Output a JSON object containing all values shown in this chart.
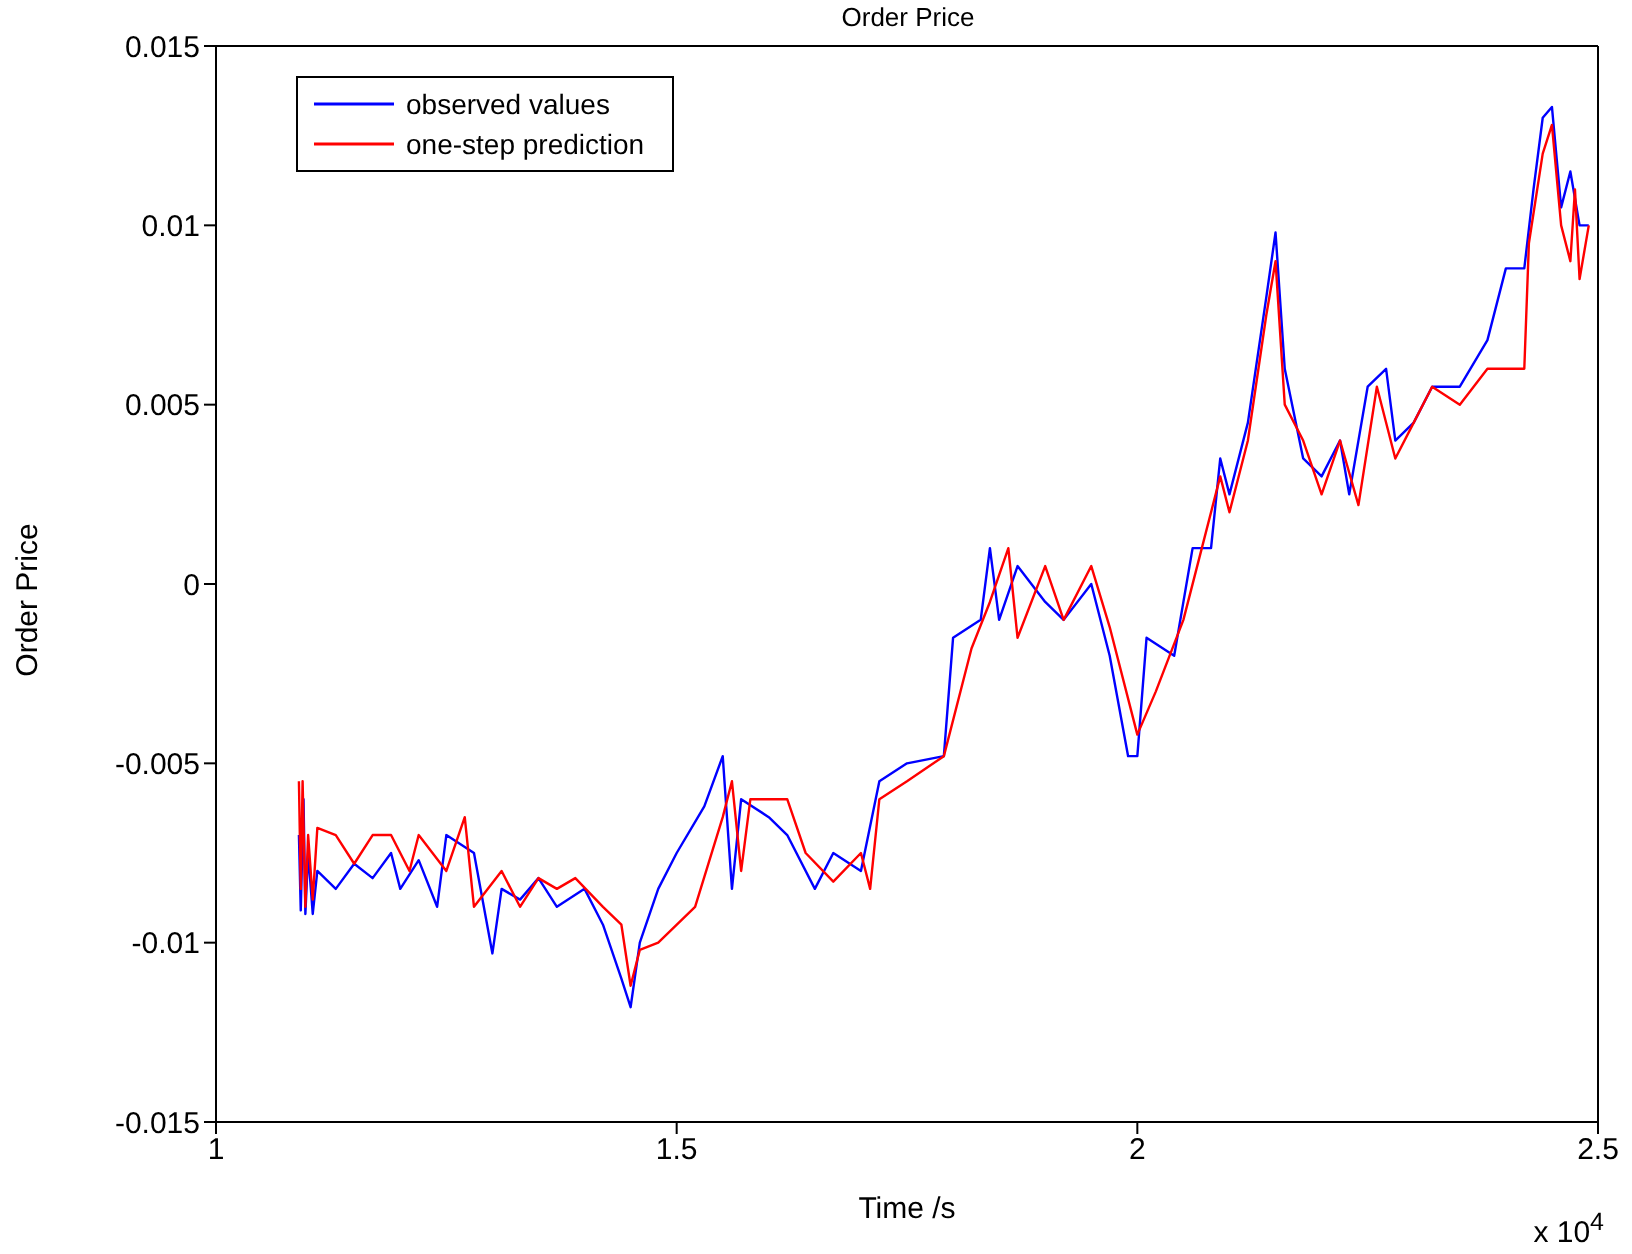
{
  "chart_data": {
    "type": "line",
    "title": "Order Price",
    "xlabel": "Time /s",
    "ylabel": "Order Price",
    "annotations": [
      "x 10$^{4}$"
    ],
    "xlim": [
      1,
      2.5
    ],
    "xticks": [
      1,
      1.5,
      2,
      2.5
    ],
    "ylim": [
      -0.015,
      0.015
    ],
    "yticks": [
      -0.015,
      -0.01,
      -0.005,
      0,
      0.005,
      0.01,
      0.015
    ],
    "grid": false,
    "legend": "top left",
    "marker": "none",
    "line_style": "solid",
    "series": [
      {
        "name": "observed values",
        "color": "#0000ff",
        "x": [
          1.09,
          1.092,
          1.095,
          1.097,
          1.1,
          1.105,
          1.11,
          1.13,
          1.15,
          1.17,
          1.19,
          1.2,
          1.22,
          1.24,
          1.25,
          1.28,
          1.3,
          1.31,
          1.33,
          1.35,
          1.37,
          1.4,
          1.42,
          1.44,
          1.45,
          1.46,
          1.48,
          1.5,
          1.53,
          1.55,
          1.56,
          1.57,
          1.6,
          1.62,
          1.65,
          1.67,
          1.7,
          1.72,
          1.75,
          1.79,
          1.8,
          1.83,
          1.84,
          1.85,
          1.87,
          1.9,
          1.92,
          1.95,
          1.97,
          1.99,
          2,
          2.01,
          2.04,
          2.06,
          2.08,
          2.09,
          2.1,
          2.12,
          2.14,
          2.15,
          2.16,
          2.18,
          2.2,
          2.22,
          2.23,
          2.25,
          2.27,
          2.28,
          2.3,
          2.32,
          2.35,
          2.38,
          2.4,
          2.42,
          2.43,
          2.44,
          2.45,
          2.46,
          2.47,
          2.48,
          2.49
        ],
        "values": [
          -0.007,
          -0.0091,
          -0.006,
          -0.0092,
          -0.0075,
          -0.0092,
          -0.008,
          -0.0085,
          -0.0078,
          -0.0082,
          -0.0075,
          -0.0085,
          -0.0077,
          -0.009,
          -0.007,
          -0.0075,
          -0.0103,
          -0.0085,
          -0.0088,
          -0.0082,
          -0.009,
          -0.0085,
          -0.0095,
          -0.011,
          -0.0118,
          -0.01,
          -0.0085,
          -0.0075,
          -0.0062,
          -0.0048,
          -0.0085,
          -0.006,
          -0.0065,
          -0.007,
          -0.0085,
          -0.0075,
          -0.008,
          -0.0055,
          -0.005,
          -0.0048,
          -0.0015,
          -0.001,
          0.001,
          -0.001,
          0.0005,
          -0.0005,
          -0.001,
          0,
          -0.002,
          -0.0048,
          -0.0048,
          -0.0015,
          -0.002,
          0.001,
          0.001,
          0.0035,
          0.0025,
          0.0045,
          0.008,
          0.0098,
          0.006,
          0.0035,
          0.003,
          0.004,
          0.0025,
          0.0055,
          0.006,
          0.004,
          0.0045,
          0.0055,
          0.0055,
          0.0068,
          0.0088,
          0.0088,
          0.011,
          0.013,
          0.0133,
          0.0105,
          0.0115,
          0.01,
          0.01
        ]
      },
      {
        "name": "one-step prediction",
        "color": "#ff0000",
        "x": [
          1.09,
          1.092,
          1.094,
          1.097,
          1.1,
          1.105,
          1.11,
          1.13,
          1.15,
          1.17,
          1.19,
          1.21,
          1.22,
          1.25,
          1.27,
          1.28,
          1.31,
          1.33,
          1.35,
          1.37,
          1.39,
          1.42,
          1.44,
          1.45,
          1.46,
          1.48,
          1.52,
          1.55,
          1.56,
          1.57,
          1.58,
          1.62,
          1.64,
          1.67,
          1.7,
          1.71,
          1.72,
          1.75,
          1.79,
          1.82,
          1.84,
          1.86,
          1.87,
          1.9,
          1.92,
          1.95,
          1.97,
          2,
          2.02,
          2.05,
          2.07,
          2.09,
          2.1,
          2.12,
          2.14,
          2.15,
          2.16,
          2.18,
          2.2,
          2.22,
          2.24,
          2.26,
          2.28,
          2.3,
          2.32,
          2.35,
          2.38,
          2.41,
          2.42,
          2.425,
          2.44,
          2.45,
          2.46,
          2.47,
          2.475,
          2.48,
          2.49
        ],
        "values": [
          -0.0055,
          -0.0085,
          -0.0055,
          -0.009,
          -0.007,
          -0.0088,
          -0.0068,
          -0.007,
          -0.0078,
          -0.007,
          -0.007,
          -0.008,
          -0.007,
          -0.008,
          -0.0065,
          -0.009,
          -0.008,
          -0.009,
          -0.0082,
          -0.0085,
          -0.0082,
          -0.009,
          -0.0095,
          -0.0112,
          -0.0102,
          -0.01,
          -0.009,
          -0.0065,
          -0.0055,
          -0.008,
          -0.006,
          -0.006,
          -0.0075,
          -0.0083,
          -0.0075,
          -0.0085,
          -0.006,
          -0.0055,
          -0.0048,
          -0.0018,
          -0.0005,
          0.001,
          -0.0015,
          0.0005,
          -0.001,
          0.0005,
          -0.0012,
          -0.0042,
          -0.003,
          -0.001,
          0.001,
          0.003,
          0.002,
          0.004,
          0.0075,
          0.009,
          0.005,
          0.004,
          0.0025,
          0.004,
          0.0022,
          0.0055,
          0.0035,
          0.0045,
          0.0055,
          0.005,
          0.006,
          0.006,
          0.006,
          0.0095,
          0.012,
          0.0128,
          0.01,
          0.009,
          0.011,
          0.0085,
          0.01
        ]
      }
    ]
  }
}
